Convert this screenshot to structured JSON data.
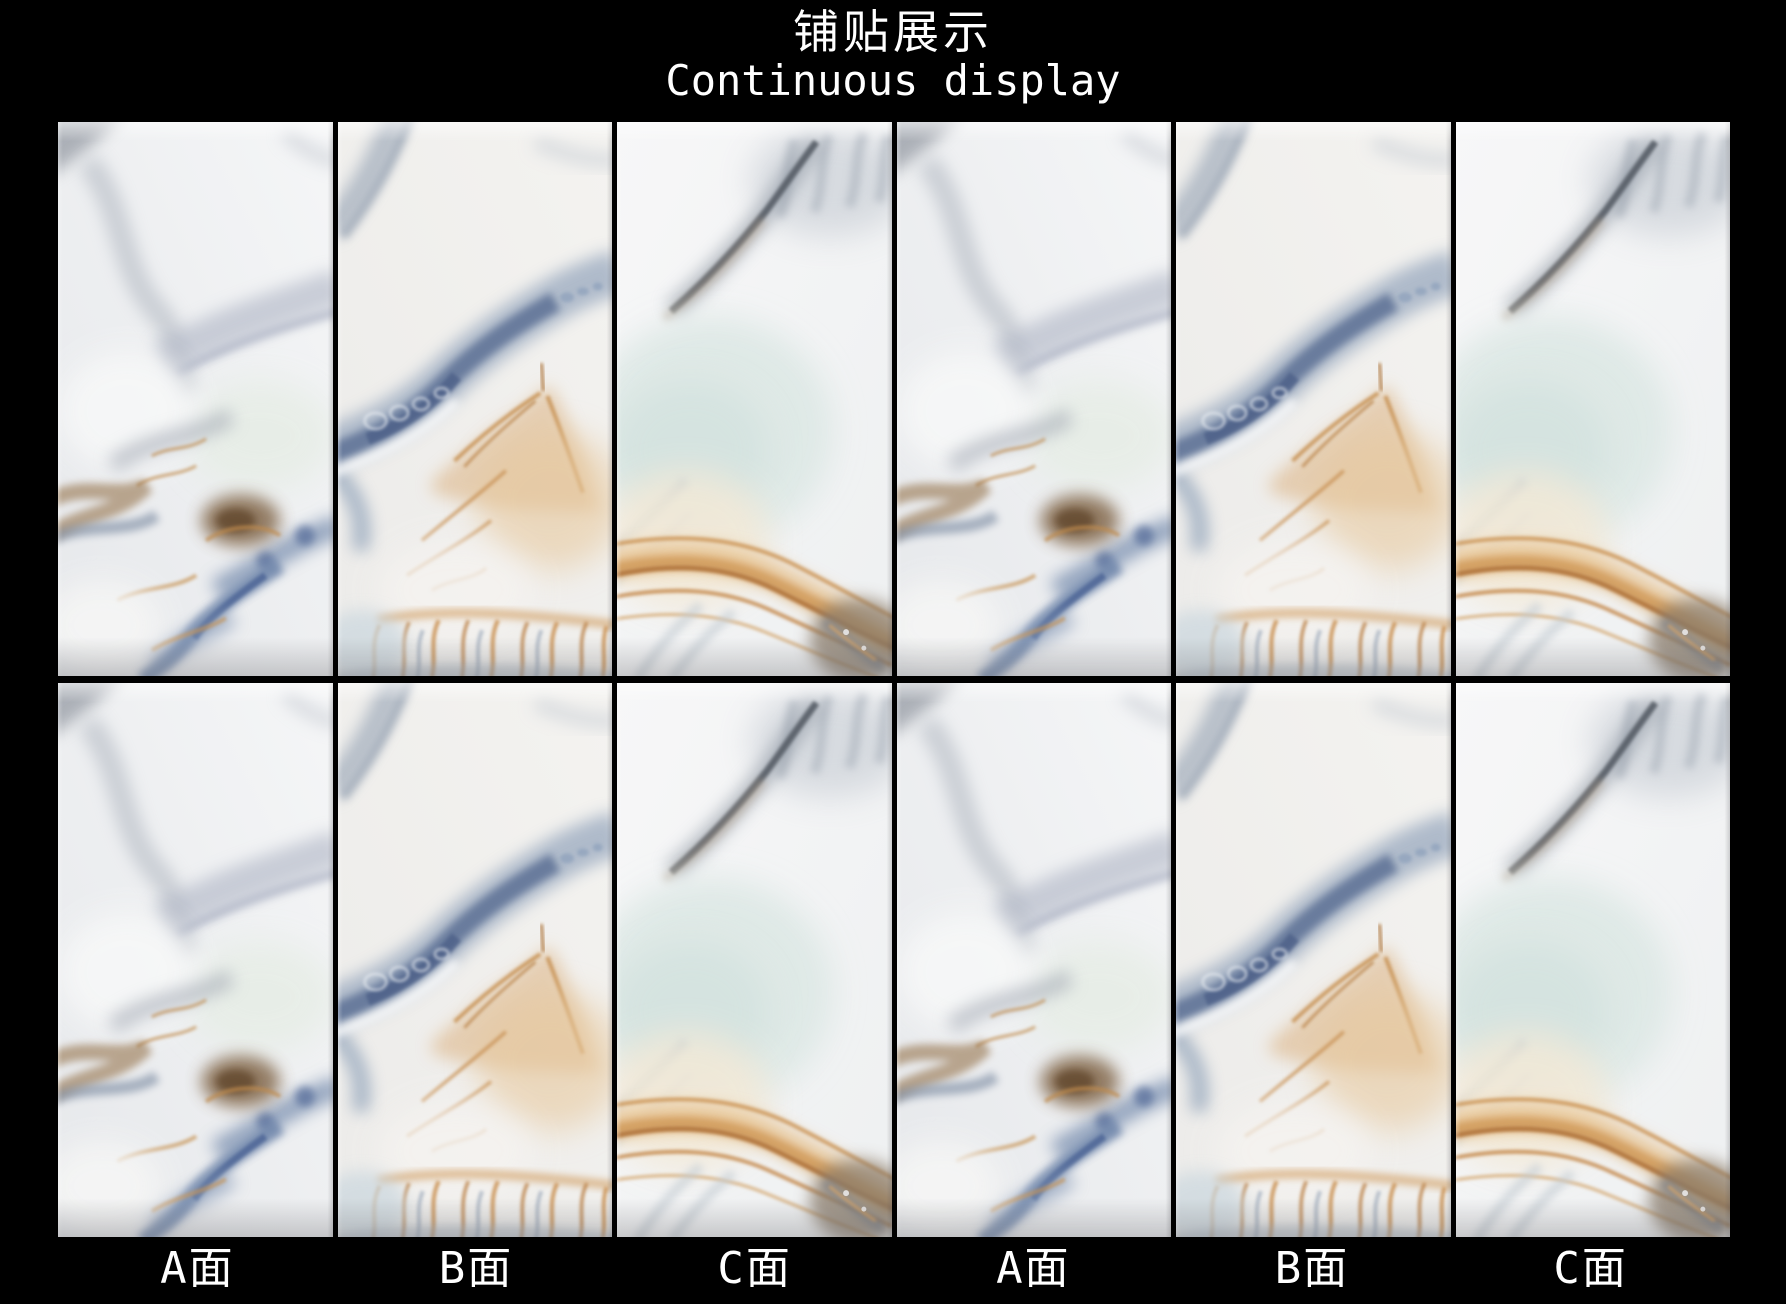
{
  "header": {
    "title_cn": "铺贴展示",
    "title_en": "Continuous display"
  },
  "board": {
    "rows": 2,
    "columns": 6,
    "tile_faces": [
      "A",
      "B",
      "C",
      "A",
      "B",
      "C"
    ],
    "labels": [
      "A面",
      "B面",
      "C面",
      "A面",
      "B面",
      "C面"
    ]
  },
  "palette": {
    "background": "#000000",
    "title_text": "#ffffff",
    "label_text": "#ffffff",
    "marble_base_light": "#f4f5f6",
    "marble_base_shade": "#e6e8eb",
    "marble_blue_vein": "#6b82a6",
    "marble_dark_blue": "#4d6188",
    "marble_slate_smoke": "#9aa2ae",
    "marble_amber": "#c98f52",
    "marble_dark_amber": "#b0733a",
    "marble_brown_patch": "#7c5f41",
    "marble_ice_green": "#dde8e5",
    "marble_cream": "#f3e9d7"
  }
}
